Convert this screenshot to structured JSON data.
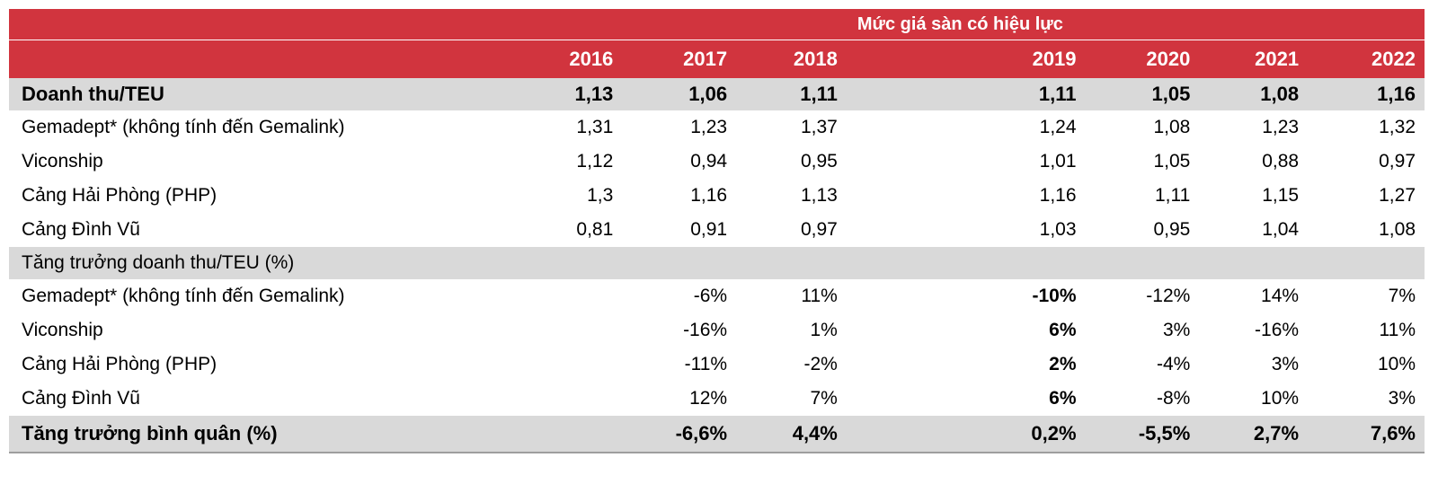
{
  "table": {
    "floor_price_label": "Mức giá sàn có hiệu lực",
    "years": [
      "2016",
      "2017",
      "2018",
      "2019",
      "2020",
      "2021",
      "2022"
    ],
    "revenue_section": {
      "label": "Doanh thu/TEU",
      "values": [
        "1,13",
        "1,06",
        "1,11",
        "1,11",
        "1,05",
        "1,08",
        "1,16"
      ],
      "rows": [
        {
          "label": "Gemadept* (không tính đến Gemalink)",
          "values": [
            "1,31",
            "1,23",
            "1,37",
            "1,24",
            "1,08",
            "1,23",
            "1,32"
          ]
        },
        {
          "label": "Viconship",
          "values": [
            "1,12",
            "0,94",
            "0,95",
            "1,01",
            "1,05",
            "0,88",
            "0,97"
          ]
        },
        {
          "label": "Cảng Hải Phòng (PHP)",
          "values": [
            "1,3",
            "1,16",
            "1,13",
            "1,16",
            "1,11",
            "1,15",
            "1,27"
          ]
        },
        {
          "label": "Cảng Đình Vũ",
          "values": [
            "0,81",
            "0,91",
            "0,97",
            "1,03",
            "0,95",
            "1,04",
            "1,08"
          ]
        }
      ]
    },
    "growth_section": {
      "label": "Tăng trưởng doanh thu/TEU (%)",
      "rows": [
        {
          "label": "Gemadept* (không tính đến Gemalink)",
          "values": [
            "",
            "-6%",
            "11%",
            "-10%",
            "-12%",
            "14%",
            "7%"
          ]
        },
        {
          "label": "Viconship",
          "values": [
            "",
            "-16%",
            "1%",
            "6%",
            "3%",
            "-16%",
            "11%"
          ]
        },
        {
          "label": "Cảng Hải Phòng (PHP)",
          "values": [
            "",
            "-11%",
            "-2%",
            "2%",
            "-4%",
            "3%",
            "10%"
          ]
        },
        {
          "label": "Cảng Đình Vũ",
          "values": [
            "",
            "12%",
            "7%",
            "6%",
            "-8%",
            "10%",
            "3%"
          ]
        }
      ]
    },
    "average_growth": {
      "label": "Tăng trưởng bình quân (%)",
      "values": [
        "",
        "-6,6%",
        "4,4%",
        "0,2%",
        "-5,5%",
        "2,7%",
        "7,6%"
      ]
    },
    "colors": {
      "header_red": "#d1343e",
      "shade_gray": "#d9d9d9"
    }
  }
}
